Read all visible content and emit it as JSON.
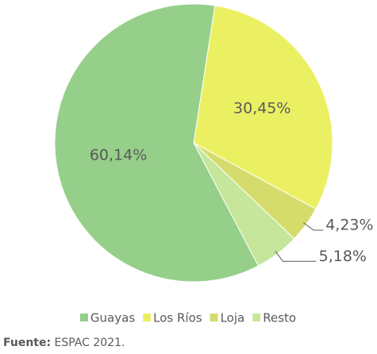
{
  "chart_data": {
    "type": "pie",
    "categories": [
      "Guayas",
      "Los Ríos",
      "Loja",
      "Resto"
    ],
    "values": [
      60.14,
      30.45,
      4.23,
      5.18
    ],
    "value_labels": [
      "60,14%",
      "30,45%",
      "4,23%",
      "5,18%"
    ],
    "colors": [
      "#95cf8a",
      "#ebf062",
      "#d5dc6c",
      "#c5e69b"
    ],
    "legend": "bottom"
  },
  "source": {
    "label": "Fuente:",
    "text": "ESPAC 2021."
  }
}
